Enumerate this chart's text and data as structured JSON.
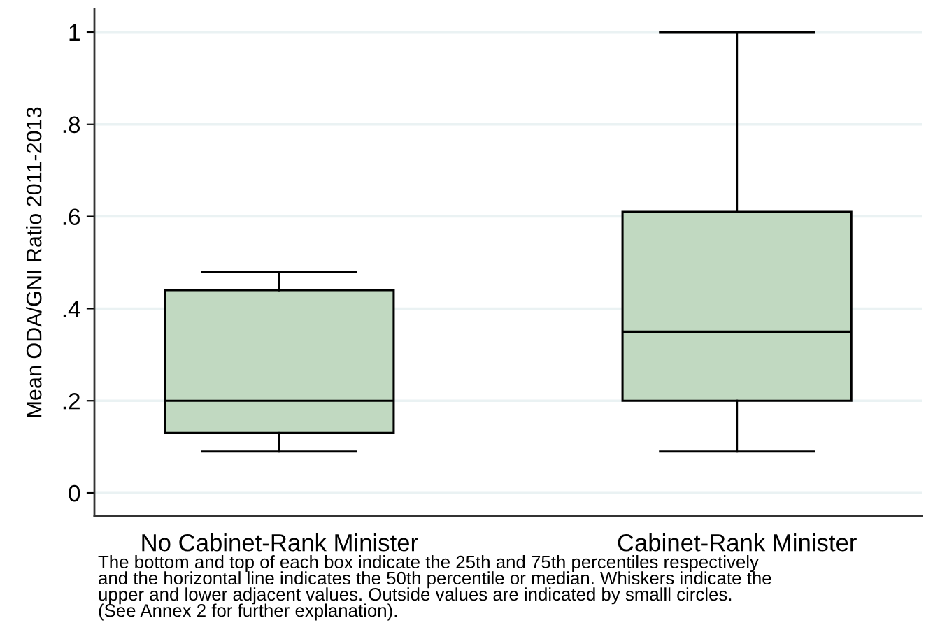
{
  "chart_data": {
    "type": "box",
    "categories": [
      "No Cabinet-Rank Minister",
      "Cabinet-Rank Minister"
    ],
    "boxes": [
      {
        "low": 0.09,
        "q1": 0.13,
        "median": 0.2,
        "q3": 0.44,
        "high": 0.48
      },
      {
        "low": 0.09,
        "q1": 0.2,
        "median": 0.35,
        "q3": 0.61,
        "high": 1.0
      }
    ],
    "color": "#c1d9c1",
    "ylabel": "Mean ODA/GNI Ratio 2011-2013",
    "ylim": [
      -0.05,
      1.05
    ],
    "yticks": [
      0,
      {
        "value": 0.2,
        "label": ".2"
      },
      {
        "value": 0.4,
        "label": ".4"
      },
      {
        "value": 0.6,
        "label": ".6"
      },
      {
        "value": 0.8,
        "label": ".8"
      },
      1
    ],
    "grid": "y",
    "annotations": [
      "The bottom and top of each box indicate the 25th and 75th percentiles respectively\nand the horizontal line indicates the 50th percentile or median. Whiskers indicate the\nupper and lower adjacent values. Outside values are indicated by smalll circles.\n(See Annex 2 for further explanation)."
    ]
  }
}
